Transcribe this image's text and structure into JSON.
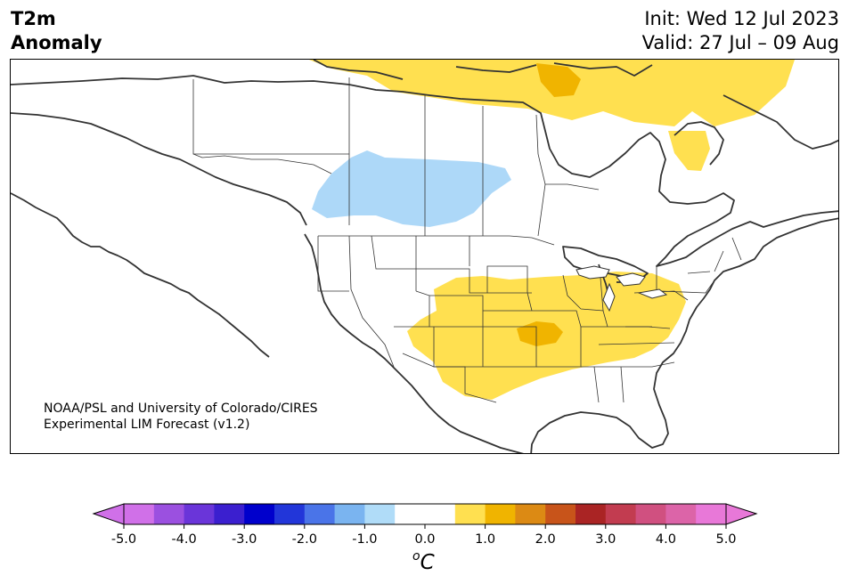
{
  "header": {
    "title_line1": "T2m",
    "title_line2": "Anomaly",
    "init": "Init: Wed 12 Jul 2023",
    "valid": "Valid: 27 Jul – 09 Aug"
  },
  "map": {
    "credit_line1": "NOAA/PSL and University of Colorado/CIRES",
    "credit_line2": "Experimental LIM Forecast (v1.2)",
    "anomalies": [
      {
        "region": "northern Canadian Arctic / Baffin",
        "level": 0.75
      },
      {
        "region": "Foxe Basin",
        "level": 1.25
      },
      {
        "region": "northern Quebec / Labrador",
        "level": 0.75
      },
      {
        "region": "Alberta / Saskatchewan",
        "level": -0.75
      },
      {
        "region": "central and southern US",
        "level": 0.75
      },
      {
        "region": "Oklahoma / Missouri",
        "level": 1.25
      }
    ]
  },
  "colorbar": {
    "unit_base": "C",
    "unit_sup": "o",
    "tick_labels": [
      "-5.0",
      "-4.0",
      "-3.0",
      "-2.0",
      "-1.0",
      "0.0",
      "1.0",
      "2.0",
      "3.0",
      "4.0",
      "5.0"
    ],
    "colors": [
      "#d070e8",
      "#9b50e0",
      "#6a35d9",
      "#3b1fcf",
      "#0000cc",
      "#2236d9",
      "#4a74e8",
      "#7ab4f0",
      "#b0dcf8",
      "#ffffff",
      "#ffffff",
      "#ffe050",
      "#f0b400",
      "#dc8a14",
      "#c8541a",
      "#aa2424",
      "#c23c50",
      "#d05080",
      "#dc64a8",
      "#e878d8"
    ],
    "under_color": "#d070e8",
    "over_color": "#e878d8"
  }
}
